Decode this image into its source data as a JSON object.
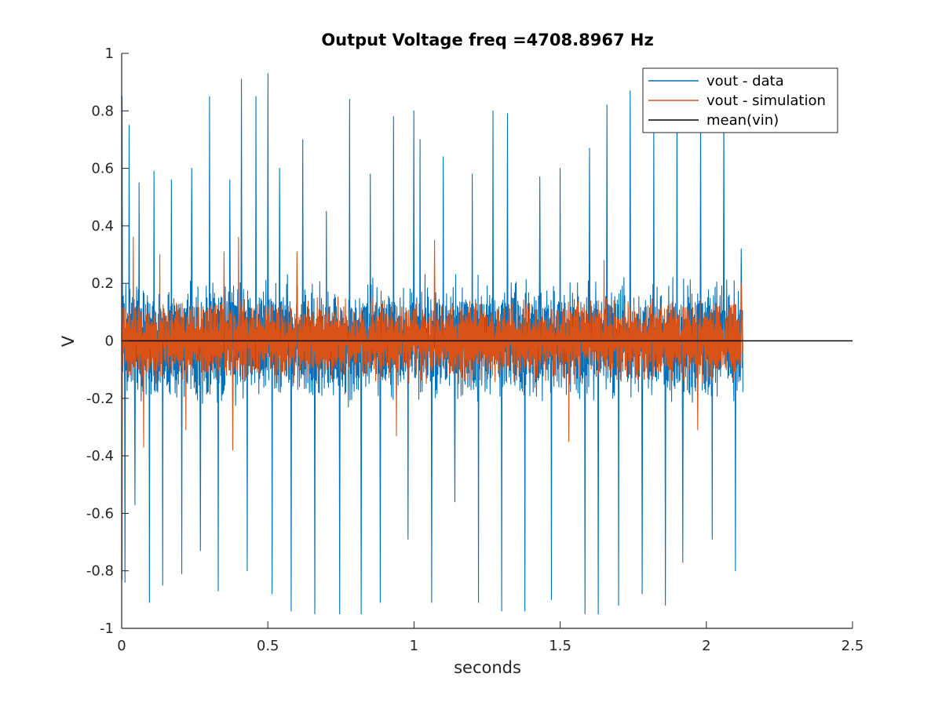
{
  "chart_data": {
    "type": "line",
    "title": "Output Voltage freq =4708.8967 Hz",
    "xlabel": "seconds",
    "ylabel": "V",
    "xlim": [
      0,
      2.5
    ],
    "ylim": [
      -1,
      1
    ],
    "xticks": [
      0,
      0.5,
      1,
      1.5,
      2,
      2.5
    ],
    "xtick_labels": [
      "0",
      "0.5",
      "1",
      "1.5",
      "2",
      "2.5"
    ],
    "yticks": [
      -1,
      -0.8,
      -0.6,
      -0.4,
      -0.2,
      0,
      0.2,
      0.4,
      0.6,
      0.8,
      1
    ],
    "ytick_labels": [
      "-1",
      "-0.8",
      "-0.6",
      "-0.4",
      "-0.2",
      "0",
      "0.2",
      "0.4",
      "0.6",
      "0.8",
      "1"
    ],
    "grid": false,
    "legend_position": "top-right",
    "series": [
      {
        "name": "vout - data",
        "color": "#0072BD",
        "x_range": [
          0,
          2.125
        ],
        "peaks": [
          [
            0.002,
            0.85
          ],
          [
            0.012,
            -0.84
          ],
          [
            0.025,
            0.75
          ],
          [
            0.045,
            -0.57
          ],
          [
            0.06,
            0.55
          ],
          [
            0.095,
            -0.91
          ],
          [
            0.11,
            0.59
          ],
          [
            0.14,
            -0.85
          ],
          [
            0.17,
            0.56
          ],
          [
            0.205,
            -0.81
          ],
          [
            0.24,
            0.6
          ],
          [
            0.27,
            -0.73
          ],
          [
            0.3,
            0.85
          ],
          [
            0.33,
            -0.87
          ],
          [
            0.37,
            0.56
          ],
          [
            0.41,
            0.91
          ],
          [
            0.43,
            -0.8
          ],
          [
            0.46,
            0.85
          ],
          [
            0.5,
            0.93
          ],
          [
            0.515,
            -0.88
          ],
          [
            0.54,
            0.6
          ],
          [
            0.58,
            -0.94
          ],
          [
            0.62,
            0.7
          ],
          [
            0.66,
            -0.95
          ],
          [
            0.7,
            0.45
          ],
          [
            0.745,
            -0.95
          ],
          [
            0.78,
            0.84
          ],
          [
            0.82,
            -0.95
          ],
          [
            0.85,
            0.58
          ],
          [
            0.885,
            -0.91
          ],
          [
            0.93,
            0.78
          ],
          [
            0.98,
            -0.69
          ],
          [
            1.0,
            0.8
          ],
          [
            1.02,
            0.7
          ],
          [
            1.06,
            -0.91
          ],
          [
            1.1,
            0.64
          ],
          [
            1.14,
            -0.56
          ],
          [
            1.2,
            0.58
          ],
          [
            1.22,
            -0.91
          ],
          [
            1.27,
            0.8
          ],
          [
            1.3,
            -0.94
          ],
          [
            1.32,
            0.79
          ],
          [
            1.38,
            -0.94
          ],
          [
            1.43,
            0.57
          ],
          [
            1.47,
            -0.9
          ],
          [
            1.5,
            0.6
          ],
          [
            1.585,
            -0.95
          ],
          [
            1.6,
            0.67
          ],
          [
            1.63,
            -0.95
          ],
          [
            1.66,
            0.82
          ],
          [
            1.7,
            -0.92
          ],
          [
            1.74,
            0.87
          ],
          [
            1.78,
            -0.88
          ],
          [
            1.82,
            0.77
          ],
          [
            1.86,
            -0.92
          ],
          [
            1.9,
            0.86
          ],
          [
            1.92,
            -0.77
          ],
          [
            1.98,
            0.8
          ],
          [
            2.02,
            -0.69
          ],
          [
            2.06,
            0.8
          ],
          [
            2.1,
            -0.8
          ],
          [
            2.12,
            0.32
          ]
        ],
        "band": 0.18
      },
      {
        "name": "vout - simulation",
        "color": "#D95319",
        "x_range": [
          0,
          2.125
        ],
        "peaks": [
          [
            0.002,
            -0.83
          ],
          [
            0.04,
            0.36
          ],
          [
            0.075,
            -0.37
          ],
          [
            0.13,
            0.3
          ],
          [
            0.22,
            -0.31
          ],
          [
            0.35,
            0.31
          ],
          [
            0.38,
            -0.38
          ],
          [
            0.4,
            0.36
          ],
          [
            0.6,
            0.31
          ],
          [
            0.94,
            -0.33
          ],
          [
            1.07,
            0.35
          ],
          [
            1.53,
            -0.35
          ],
          [
            1.65,
            0.28
          ],
          [
            1.97,
            -0.31
          ],
          [
            2.12,
            0.2
          ]
        ],
        "band": 0.12
      },
      {
        "name": "mean(vin)",
        "color": "#000000",
        "x": [
          0,
          2.5
        ],
        "y": [
          0,
          0
        ]
      }
    ]
  }
}
